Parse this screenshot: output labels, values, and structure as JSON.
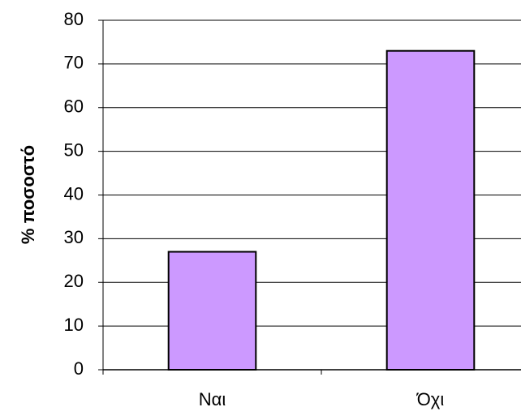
{
  "chart_data": {
    "type": "bar",
    "y_label": "% ποσοστό",
    "categories": [
      "Ναι",
      "Όχι"
    ],
    "values": [
      27,
      73
    ],
    "color": "#cc99ff",
    "ylim": [
      0,
      80
    ],
    "yticks": [
      0,
      10,
      20,
      30,
      40,
      50,
      60,
      70,
      80
    ],
    "grid": true
  }
}
